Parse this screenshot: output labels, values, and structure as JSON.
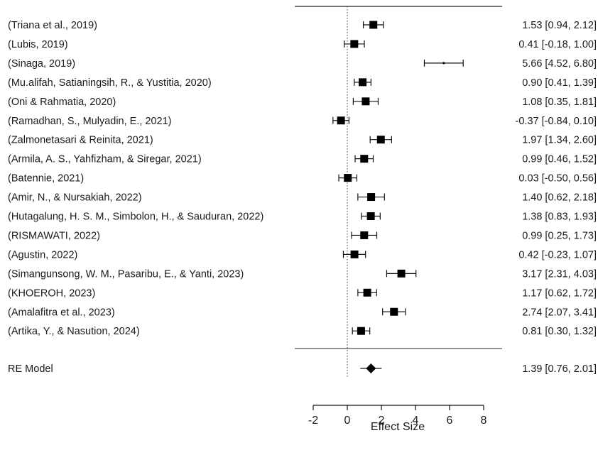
{
  "chart_data": {
    "type": "forest",
    "xlabel": "Effect Size",
    "xlim": [
      -2,
      8
    ],
    "ticks": [
      -2,
      0,
      2,
      4,
      6,
      8
    ],
    "reference_line": 0,
    "studies": [
      {
        "label": "(Triana et al., 2019)",
        "est": 1.53,
        "lo": 0.94,
        "hi": 2.12,
        "ci_text": "1.53 [0.94, 2.12]"
      },
      {
        "label": "(Lubis, 2019)",
        "est": 0.41,
        "lo": -0.18,
        "hi": 1.0,
        "ci_text": "0.41 [-0.18, 1.00]"
      },
      {
        "label": "(Sinaga, 2019)",
        "est": 5.66,
        "lo": 4.52,
        "hi": 6.8,
        "ci_text": "5.66 [4.52, 6.80]",
        "weight": "small"
      },
      {
        "label": "(Mu.alifah, Satianingsih, R., & Yustitia, 2020)",
        "est": 0.9,
        "lo": 0.41,
        "hi": 1.39,
        "ci_text": "0.90 [0.41, 1.39]"
      },
      {
        "label": "(Oni & Rahmatia, 2020)",
        "est": 1.08,
        "lo": 0.35,
        "hi": 1.81,
        "ci_text": "1.08 [0.35, 1.81]"
      },
      {
        "label": "(Ramadhan, S., Mulyadin, E., 2021)",
        "est": -0.37,
        "lo": -0.84,
        "hi": 0.1,
        "ci_text": "-0.37 [-0.84, 0.10]"
      },
      {
        "label": "(Zalmonetasari & Reinita, 2021)",
        "est": 1.97,
        "lo": 1.34,
        "hi": 2.6,
        "ci_text": "1.97 [1.34, 2.60]"
      },
      {
        "label": "(Armila, A. S., Yahfizham, & Siregar, 2021)",
        "est": 0.99,
        "lo": 0.46,
        "hi": 1.52,
        "ci_text": "0.99 [0.46, 1.52]"
      },
      {
        "label": "(Batennie, 2021)",
        "est": 0.03,
        "lo": -0.5,
        "hi": 0.56,
        "ci_text": "0.03 [-0.50, 0.56]"
      },
      {
        "label": "(Amir, N., & Nursakiah, 2022)",
        "est": 1.4,
        "lo": 0.62,
        "hi": 2.18,
        "ci_text": "1.40 [0.62, 2.18]"
      },
      {
        "label": "(Hutagalung, H. S. M., Simbolon, H., & Sauduran, 2022)",
        "est": 1.38,
        "lo": 0.83,
        "hi": 1.93,
        "ci_text": "1.38 [0.83, 1.93]"
      },
      {
        "label": "(RISMAWATI, 2022)",
        "est": 0.99,
        "lo": 0.25,
        "hi": 1.73,
        "ci_text": "0.99 [0.25, 1.73]"
      },
      {
        "label": "(Agustin, 2022)",
        "est": 0.42,
        "lo": -0.23,
        "hi": 1.07,
        "ci_text": "0.42 [-0.23, 1.07]"
      },
      {
        "label": "(Simangunsong, W. M., Pasaribu, E., & Yanti, 2023)",
        "est": 3.17,
        "lo": 2.31,
        "hi": 4.03,
        "ci_text": "3.17 [2.31, 4.03]"
      },
      {
        "label": "(KHOEROH, 2023)",
        "est": 1.17,
        "lo": 0.62,
        "hi": 1.72,
        "ci_text": "1.17 [0.62, 1.72]"
      },
      {
        "label": "(Amalafitra et al., 2023)",
        "est": 2.74,
        "lo": 2.07,
        "hi": 3.41,
        "ci_text": "2.74 [2.07, 3.41]"
      },
      {
        "label": "(Artika, Y., & Nasution, 2024)",
        "est": 0.81,
        "lo": 0.3,
        "hi": 1.32,
        "ci_text": "0.81 [0.30, 1.32]"
      }
    ],
    "summary": {
      "label": "RE Model",
      "est": 1.39,
      "lo": 0.76,
      "hi": 2.01,
      "ci_text": "1.39 [0.76, 2.01]"
    }
  }
}
